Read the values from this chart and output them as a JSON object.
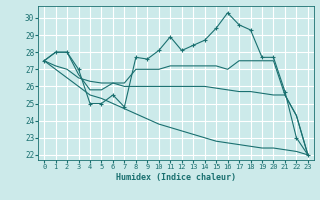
{
  "xlabel": "Humidex (Indice chaleur)",
  "background_color": "#cceaea",
  "grid_color": "#ffffff",
  "line_color": "#1a7070",
  "xlim": [
    -0.5,
    23.5
  ],
  "ylim": [
    21.7,
    30.7
  ],
  "yticks": [
    22,
    23,
    24,
    25,
    26,
    27,
    28,
    29,
    30
  ],
  "xticks": [
    0,
    1,
    2,
    3,
    4,
    5,
    6,
    7,
    8,
    9,
    10,
    11,
    12,
    13,
    14,
    15,
    16,
    17,
    18,
    19,
    20,
    21,
    22,
    23
  ],
  "lines": [
    {
      "x": [
        0,
        1,
        2,
        3,
        4,
        5,
        6,
        7,
        8,
        9,
        10,
        11,
        12,
        13,
        14,
        15,
        16,
        17,
        18,
        19,
        20,
        21,
        22,
        23
      ],
      "y": [
        27.5,
        28.0,
        28.0,
        27.0,
        25.0,
        25.0,
        25.5,
        24.8,
        27.7,
        27.6,
        28.1,
        28.9,
        28.1,
        28.4,
        28.7,
        29.4,
        30.3,
        29.6,
        29.3,
        27.7,
        27.7,
        25.7,
        23.0,
        22.0
      ],
      "marker": true
    },
    {
      "x": [
        0,
        1,
        2,
        3,
        4,
        5,
        6,
        7,
        8,
        9,
        10,
        11,
        12,
        13,
        14,
        15,
        16,
        17,
        18,
        19,
        20,
        21,
        22,
        23
      ],
      "y": [
        27.5,
        28.0,
        28.0,
        26.7,
        25.8,
        25.8,
        26.2,
        26.2,
        27.0,
        27.0,
        27.0,
        27.2,
        27.2,
        27.2,
        27.2,
        27.2,
        27.0,
        27.5,
        27.5,
        27.5,
        27.5,
        25.5,
        24.3,
        22.0
      ],
      "marker": false
    },
    {
      "x": [
        0,
        1,
        2,
        3,
        4,
        5,
        6,
        7,
        8,
        9,
        10,
        11,
        12,
        13,
        14,
        15,
        16,
        17,
        18,
        19,
        20,
        21,
        22,
        23
      ],
      "y": [
        27.5,
        27.2,
        27.0,
        26.5,
        26.3,
        26.2,
        26.2,
        26.0,
        26.0,
        26.0,
        26.0,
        26.0,
        26.0,
        26.0,
        26.0,
        25.9,
        25.8,
        25.7,
        25.7,
        25.6,
        25.5,
        25.5,
        24.3,
        22.0
      ],
      "marker": false
    },
    {
      "x": [
        0,
        1,
        2,
        3,
        4,
        5,
        6,
        7,
        8,
        9,
        10,
        11,
        12,
        13,
        14,
        15,
        16,
        17,
        18,
        19,
        20,
        21,
        22,
        23
      ],
      "y": [
        27.5,
        27.0,
        26.5,
        26.0,
        25.5,
        25.3,
        25.0,
        24.7,
        24.4,
        24.1,
        23.8,
        23.6,
        23.4,
        23.2,
        23.0,
        22.8,
        22.7,
        22.6,
        22.5,
        22.4,
        22.4,
        22.3,
        22.2,
        22.0
      ],
      "marker": false
    }
  ]
}
